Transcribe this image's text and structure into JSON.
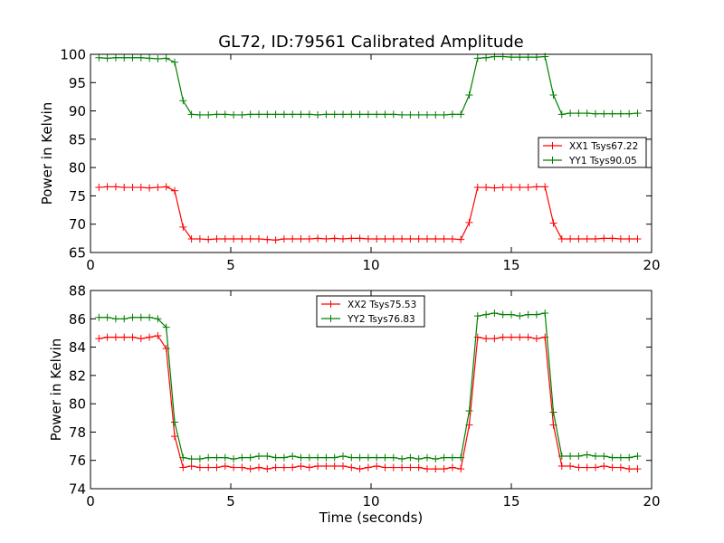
{
  "chart_data": [
    {
      "type": "line",
      "title": "GL72, ID:79561 Calibrated Amplitude",
      "xlabel": "",
      "ylabel": "Power in Kelvin",
      "xlim": [
        0,
        20
      ],
      "ylim": [
        65,
        100
      ],
      "xticks": [
        "0",
        "5",
        "10",
        "15",
        "20"
      ],
      "yticks": [
        "65",
        "70",
        "75",
        "80",
        "85",
        "90",
        "95",
        "100"
      ],
      "legend": "center-right",
      "x": [
        0.3,
        0.6,
        0.9,
        1.2,
        1.5,
        1.8,
        2.1,
        2.4,
        2.7,
        3.0,
        3.3,
        3.6,
        3.9,
        4.2,
        4.5,
        4.8,
        5.1,
        5.4,
        5.7,
        6.0,
        6.3,
        6.6,
        6.9,
        7.2,
        7.5,
        7.8,
        8.1,
        8.4,
        8.7,
        9.0,
        9.3,
        9.6,
        9.9,
        10.2,
        10.5,
        10.8,
        11.1,
        11.4,
        11.7,
        12.0,
        12.3,
        12.6,
        12.9,
        13.2,
        13.5,
        13.8,
        14.1,
        14.4,
        14.7,
        15.0,
        15.3,
        15.6,
        15.9,
        16.2,
        16.5,
        16.8,
        17.1,
        17.4,
        17.7,
        18.0,
        18.3,
        18.6,
        18.9,
        19.2,
        19.5
      ],
      "series": [
        {
          "name": "XX1 Tsys67.22",
          "color": "#ff0000",
          "values": [
            76.5,
            76.6,
            76.6,
            76.5,
            76.5,
            76.5,
            76.4,
            76.5,
            76.6,
            75.9,
            69.5,
            67.4,
            67.4,
            67.3,
            67.4,
            67.4,
            67.4,
            67.4,
            67.4,
            67.4,
            67.3,
            67.2,
            67.4,
            67.4,
            67.4,
            67.4,
            67.5,
            67.4,
            67.5,
            67.4,
            67.5,
            67.5,
            67.4,
            67.4,
            67.4,
            67.4,
            67.4,
            67.4,
            67.4,
            67.4,
            67.4,
            67.4,
            67.4,
            67.3,
            70.3,
            76.5,
            76.5,
            76.4,
            76.5,
            76.5,
            76.5,
            76.5,
            76.6,
            76.6,
            70.2,
            67.4,
            67.4,
            67.4,
            67.4,
            67.4,
            67.5,
            67.5,
            67.4,
            67.4,
            67.4
          ]
        },
        {
          "name": "YY1 Tsys90.05",
          "color": "#008000",
          "values": [
            99.4,
            99.3,
            99.4,
            99.4,
            99.4,
            99.4,
            99.3,
            99.2,
            99.3,
            98.6,
            91.8,
            89.4,
            89.3,
            89.3,
            89.4,
            89.4,
            89.3,
            89.3,
            89.4,
            89.4,
            89.4,
            89.4,
            89.4,
            89.4,
            89.4,
            89.4,
            89.3,
            89.4,
            89.4,
            89.4,
            89.4,
            89.4,
            89.4,
            89.4,
            89.4,
            89.4,
            89.3,
            89.3,
            89.3,
            89.3,
            89.3,
            89.3,
            89.4,
            89.4,
            92.8,
            99.3,
            99.4,
            99.6,
            99.6,
            99.5,
            99.5,
            99.5,
            99.5,
            99.6,
            92.8,
            89.4,
            89.6,
            89.6,
            89.6,
            89.5,
            89.5,
            89.5,
            89.5,
            89.5,
            89.6
          ]
        }
      ]
    },
    {
      "type": "line",
      "title": "",
      "xlabel": "Time (seconds)",
      "ylabel": "Power in Kelvin",
      "xlim": [
        0,
        20
      ],
      "ylim": [
        74,
        88
      ],
      "xticks": [
        "0",
        "5",
        "10",
        "15",
        "20"
      ],
      "yticks": [
        "74",
        "76",
        "78",
        "80",
        "82",
        "84",
        "86",
        "88"
      ],
      "legend": "upper-center",
      "x": [
        0.3,
        0.6,
        0.9,
        1.2,
        1.5,
        1.8,
        2.1,
        2.4,
        2.7,
        3.0,
        3.3,
        3.6,
        3.9,
        4.2,
        4.5,
        4.8,
        5.1,
        5.4,
        5.7,
        6.0,
        6.3,
        6.6,
        6.9,
        7.2,
        7.5,
        7.8,
        8.1,
        8.4,
        8.7,
        9.0,
        9.3,
        9.6,
        9.9,
        10.2,
        10.5,
        10.8,
        11.1,
        11.4,
        11.7,
        12.0,
        12.3,
        12.6,
        12.9,
        13.2,
        13.5,
        13.8,
        14.1,
        14.4,
        14.7,
        15.0,
        15.3,
        15.6,
        15.9,
        16.2,
        16.5,
        16.8,
        17.1,
        17.4,
        17.7,
        18.0,
        18.3,
        18.6,
        18.9,
        19.2,
        19.5
      ],
      "series": [
        {
          "name": "XX2 Tsys75.53",
          "color": "#ff0000",
          "values": [
            84.6,
            84.7,
            84.7,
            84.7,
            84.7,
            84.6,
            84.7,
            84.8,
            83.9,
            77.7,
            75.5,
            75.6,
            75.5,
            75.5,
            75.5,
            75.6,
            75.5,
            75.5,
            75.4,
            75.5,
            75.4,
            75.5,
            75.5,
            75.5,
            75.6,
            75.5,
            75.6,
            75.6,
            75.6,
            75.6,
            75.5,
            75.4,
            75.5,
            75.6,
            75.5,
            75.5,
            75.5,
            75.5,
            75.5,
            75.4,
            75.4,
            75.4,
            75.5,
            75.4,
            78.5,
            84.7,
            84.6,
            84.6,
            84.7,
            84.7,
            84.7,
            84.7,
            84.6,
            84.7,
            78.5,
            75.6,
            75.6,
            75.5,
            75.5,
            75.5,
            75.6,
            75.5,
            75.5,
            75.4,
            75.4
          ]
        },
        {
          "name": "YY2 Tsys76.83",
          "color": "#008000",
          "values": [
            86.1,
            86.1,
            86.0,
            86.0,
            86.1,
            86.1,
            86.1,
            86.0,
            85.4,
            78.7,
            76.2,
            76.1,
            76.1,
            76.2,
            76.2,
            76.2,
            76.1,
            76.2,
            76.2,
            76.3,
            76.3,
            76.2,
            76.2,
            76.3,
            76.2,
            76.2,
            76.2,
            76.2,
            76.2,
            76.3,
            76.2,
            76.2,
            76.2,
            76.2,
            76.2,
            76.2,
            76.1,
            76.2,
            76.1,
            76.2,
            76.1,
            76.2,
            76.2,
            76.2,
            79.5,
            86.2,
            86.3,
            86.4,
            86.3,
            86.3,
            86.2,
            86.3,
            86.3,
            86.4,
            79.4,
            76.3,
            76.3,
            76.3,
            76.4,
            76.3,
            76.3,
            76.2,
            76.2,
            76.2,
            76.3
          ]
        }
      ]
    }
  ]
}
